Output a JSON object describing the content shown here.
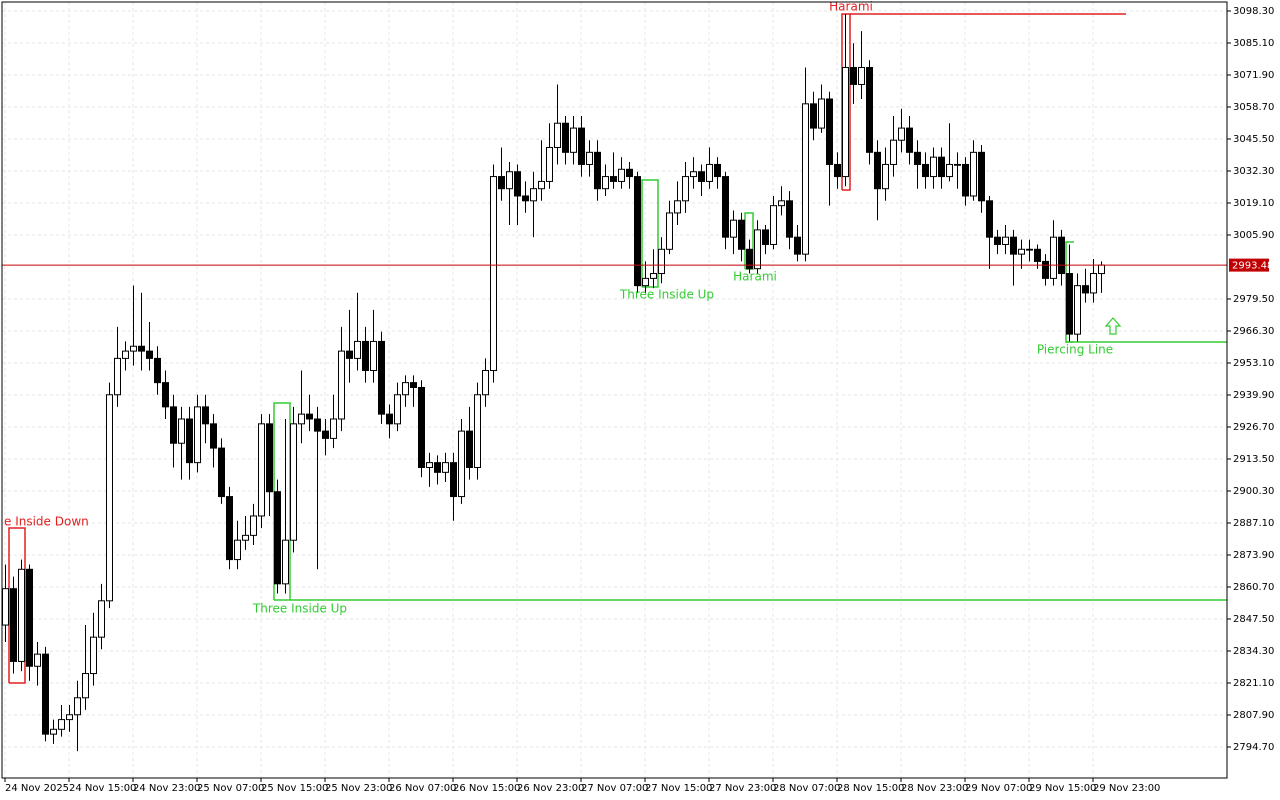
{
  "chart_data": {
    "type": "candlestick",
    "up_color": "#ffffff",
    "down_color": "#000000",
    "outline_color": "#000000",
    "grid": true,
    "ylim": [
      2781.91,
      3102.01
    ],
    "yticks": [
      {
        "value": 3098.3,
        "label": "3098.30"
      },
      {
        "value": 3085.1,
        "label": "3085.10"
      },
      {
        "value": 3071.9,
        "label": "3071.90"
      },
      {
        "value": 3058.7,
        "label": "3058.70"
      },
      {
        "value": 3045.5,
        "label": "3045.50"
      },
      {
        "value": 3032.3,
        "label": "3032.30"
      },
      {
        "value": 3019.1,
        "label": "3019.10"
      },
      {
        "value": 3005.9,
        "label": "3005.90"
      },
      {
        "value": 2979.5,
        "label": "2979.50"
      },
      {
        "value": 2966.3,
        "label": "2966.30"
      },
      {
        "value": 2953.1,
        "label": "2953.10"
      },
      {
        "value": 2939.9,
        "label": "2939.90"
      },
      {
        "value": 2926.7,
        "label": "2926.70"
      },
      {
        "value": 2913.5,
        "label": "2913.50"
      },
      {
        "value": 2900.3,
        "label": "2900.30"
      },
      {
        "value": 2887.1,
        "label": "2887.10"
      },
      {
        "value": 2873.9,
        "label": "2873.90"
      },
      {
        "value": 2860.7,
        "label": "2860.70"
      },
      {
        "value": 2847.5,
        "label": "2847.50"
      },
      {
        "value": 2834.3,
        "label": "2834.30"
      },
      {
        "value": 2821.1,
        "label": "2821.10"
      },
      {
        "value": 2807.9,
        "label": "2807.90"
      },
      {
        "value": 2794.7,
        "label": "2794.70"
      }
    ],
    "xlim": [
      -0.375,
      152.75
    ],
    "xticks": [
      {
        "value": 0,
        "label": "24 Nov 2025"
      },
      {
        "value": 8,
        "label": "24 Nov 15:00"
      },
      {
        "value": 16,
        "label": "24 Nov 23:00"
      },
      {
        "value": 24,
        "label": "25 Nov 07:00"
      },
      {
        "value": 32,
        "label": "25 Nov 15:00"
      },
      {
        "value": 40,
        "label": "25 Nov 23:00"
      },
      {
        "value": 48,
        "label": "26 Nov 07:00"
      },
      {
        "value": 56,
        "label": "26 Nov 15:00"
      },
      {
        "value": 64,
        "label": "26 Nov 23:00"
      },
      {
        "value": 72,
        "label": "27 Nov 07:00"
      },
      {
        "value": 80,
        "label": "27 Nov 15:00"
      },
      {
        "value": 88,
        "label": "27 Nov 23:00"
      },
      {
        "value": 96,
        "label": "28 Nov 07:00"
      },
      {
        "value": 104,
        "label": "28 Nov 15:00"
      },
      {
        "value": 112,
        "label": "28 Nov 23:00"
      },
      {
        "value": 120,
        "label": "29 Nov 07:00"
      },
      {
        "value": 128,
        "label": "29 Nov 15:00"
      },
      {
        "value": 136,
        "label": "29 Nov 23:00"
      }
    ],
    "open": [
      2845,
      2860,
      2830,
      2868,
      2828,
      2833,
      2800,
      2802,
      2806,
      2808,
      2815,
      2825,
      2840,
      2855,
      2940,
      2955,
      2958,
      2960,
      2958,
      2955,
      2945,
      2935,
      2920,
      2930,
      2912,
      2935,
      2928,
      2918,
      2898,
      2872,
      2880,
      2882,
      2890,
      2928,
      2900,
      2862,
      2880,
      2928,
      2932,
      2930,
      2925,
      2922,
      2930,
      2958,
      2955,
      2962,
      2950,
      2962,
      2932,
      2928,
      2940,
      2945,
      2943,
      2910,
      2912,
      2908,
      2912,
      2898,
      2925,
      2910,
      2940,
      2950,
      3030,
      3025,
      3032,
      3022,
      3020,
      3025,
      3028,
      3042,
      3052,
      3040,
      3050,
      3035,
      3040,
      3025,
      3030,
      3028,
      3033,
      3030,
      2985,
      2988,
      2990,
      3000,
      3015,
      3020,
      3030,
      3032,
      3028,
      3035,
      3030,
      3005,
      3012,
      3000,
      2992,
      3008,
      3002,
      3018,
      3020,
      3005,
      2998,
      3060,
      3050,
      3062,
      3035,
      3030,
      3075,
      3068,
      3075,
      3040,
      3025,
      3035,
      3045,
      3050,
      3040,
      3035,
      3030,
      3038,
      3030,
      3035,
      3035,
      3022,
      3040,
      3020,
      3005,
      3002,
      3005,
      2998,
      3000,
      3000,
      2995,
      2988,
      3005,
      2990,
      2965,
      2985,
      2982,
      2990
    ],
    "high": [
      2870,
      2865,
      2872,
      2870,
      2838,
      2836,
      2806,
      2812,
      2812,
      2822,
      2845,
      2850,
      2862,
      2945,
      2968,
      2962,
      2985,
      2982,
      2970,
      2960,
      2950,
      2940,
      2935,
      2935,
      2940,
      2940,
      2932,
      2922,
      2902,
      2888,
      2890,
      2895,
      2932,
      2932,
      2905,
      2930,
      2935,
      2950,
      2940,
      2935,
      2930,
      2940,
      2968,
      2975,
      2982,
      2968,
      2975,
      2966,
      2936,
      2945,
      2948,
      2948,
      2946,
      2916,
      2915,
      2916,
      2916,
      2930,
      2935,
      2945,
      2955,
      3035,
      3042,
      3036,
      3035,
      3028,
      3032,
      3045,
      3052,
      3068,
      3055,
      3055,
      3055,
      3045,
      3045,
      3035,
      3040,
      3038,
      3036,
      3032,
      2995,
      3000,
      3005,
      3020,
      3028,
      3036,
      3038,
      3035,
      3042,
      3038,
      3032,
      3016,
      3015,
      3004,
      3012,
      3010,
      3022,
      3026,
      3024,
      3010,
      3075,
      3065,
      3068,
      3065,
      3040,
      3097,
      3085,
      3090,
      3078,
      3045,
      3042,
      3055,
      3058,
      3055,
      3045,
      3040,
      3042,
      3042,
      3052,
      3040,
      3038,
      3045,
      3043,
      3022,
      3008,
      3010,
      3008,
      3004,
      3004,
      3002,
      2998,
      3012,
      3008,
      3002,
      2990,
      2992,
      2996,
      2995
    ],
    "low": [
      2838,
      2825,
      2826,
      2822,
      2820,
      2797,
      2796,
      2799,
      2801,
      2793,
      2810,
      2820,
      2835,
      2852,
      2935,
      2950,
      2952,
      2950,
      2950,
      2940,
      2930,
      2910,
      2905,
      2905,
      2908,
      2920,
      2910,
      2895,
      2868,
      2868,
      2876,
      2878,
      2885,
      2890,
      2858,
      2858,
      2875,
      2920,
      2925,
      2868,
      2915,
      2918,
      2925,
      2945,
      2950,
      2945,
      2945,
      2928,
      2922,
      2925,
      2935,
      2935,
      2906,
      2902,
      2903,
      2904,
      2888,
      2895,
      2905,
      2905,
      2935,
      2945,
      3020,
      3010,
      3010,
      3015,
      3005,
      3020,
      3025,
      3035,
      3035,
      3035,
      3030,
      3030,
      3020,
      3022,
      3025,
      3025,
      3025,
      2982,
      2982,
      2984,
      2986,
      2998,
      3010,
      3015,
      3025,
      3022,
      3025,
      3025,
      3000,
      2998,
      2995,
      2990,
      2990,
      2998,
      3000,
      3014,
      3000,
      2995,
      2995,
      3045,
      3048,
      3018,
      3025,
      3026,
      3060,
      3062,
      3035,
      3012,
      3020,
      3030,
      3040,
      3035,
      3025,
      3025,
      3025,
      3025,
      3028,
      3025,
      3018,
      3020,
      3015,
      2992,
      2998,
      2998,
      2985,
      2992,
      2995,
      2992,
      2985,
      2985,
      2985,
      2962,
      2962,
      2978,
      2978,
      2982
    ],
    "close": [
      2860,
      2830,
      2868,
      2828,
      2833,
      2800,
      2802,
      2806,
      2808,
      2815,
      2825,
      2840,
      2855,
      2940,
      2955,
      2958,
      2960,
      2958,
      2955,
      2945,
      2935,
      2920,
      2930,
      2912,
      2935,
      2928,
      2918,
      2898,
      2872,
      2880,
      2882,
      2890,
      2928,
      2900,
      2862,
      2880,
      2928,
      2932,
      2930,
      2925,
      2922,
      2930,
      2958,
      2955,
      2962,
      2950,
      2962,
      2932,
      2928,
      2940,
      2945,
      2943,
      2910,
      2912,
      2908,
      2912,
      2898,
      2925,
      2910,
      2940,
      2950,
      3030,
      3025,
      3032,
      3022,
      3020,
      3025,
      3028,
      3042,
      3052,
      3040,
      3050,
      3035,
      3040,
      3025,
      3030,
      3028,
      3033,
      3030,
      2985,
      2988,
      2990,
      3000,
      3015,
      3020,
      3030,
      3032,
      3028,
      3035,
      3030,
      3005,
      3012,
      3000,
      2992,
      3008,
      3002,
      3018,
      3020,
      3005,
      2998,
      3060,
      3050,
      3062,
      3035,
      3030,
      3075,
      3068,
      3075,
      3040,
      3025,
      3035,
      3045,
      3050,
      3040,
      3035,
      3030,
      3038,
      3030,
      3035,
      3035,
      3022,
      3040,
      3020,
      3005,
      3002,
      3005,
      2998,
      3000,
      3000,
      2995,
      2988,
      3005,
      2990,
      2965,
      2985,
      2982,
      2990,
      2993.48
    ],
    "current_price": 2993.48,
    "current_price_color": "#c00000",
    "annotations": [
      {
        "text": "e Inside Down",
        "color": "#e02020"
      },
      {
        "text": "Three Inside Up",
        "color": "#33cc33"
      },
      {
        "text": "Three Inside Up",
        "color": "#33cc33"
      },
      {
        "text": "Harami",
        "color": "#33cc33"
      },
      {
        "text": "Harami",
        "color": "#e02020"
      },
      {
        "text": "Piercing Line",
        "color": "#33cc33"
      }
    ]
  }
}
